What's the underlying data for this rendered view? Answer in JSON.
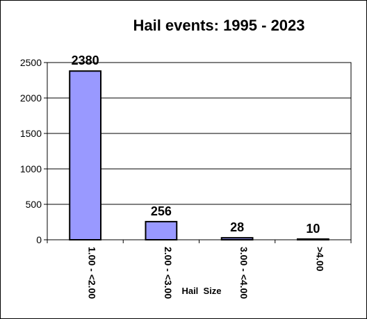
{
  "chart_data": {
    "type": "bar",
    "title": "Hail events: 1995 - 2023",
    "xlabel": "Hail  Size",
    "ylabel": "",
    "categories": [
      "1.00 - <2.00",
      "2.00 - <3.00",
      "3.00 - <4.00",
      ">4.00"
    ],
    "values": [
      2380,
      256,
      28,
      10
    ],
    "data_labels": [
      "2380",
      "256",
      "28",
      "10"
    ],
    "ylim": [
      0,
      2500
    ],
    "yticks": [
      0,
      500,
      1000,
      1500,
      2000,
      2500
    ],
    "ytick_labels": [
      "0",
      "500",
      "1000",
      "1500",
      "2000",
      "2500"
    ],
    "grid": true,
    "legend": "none",
    "bar_color": "#9999ff",
    "bar_edge_color": "#000000"
  }
}
